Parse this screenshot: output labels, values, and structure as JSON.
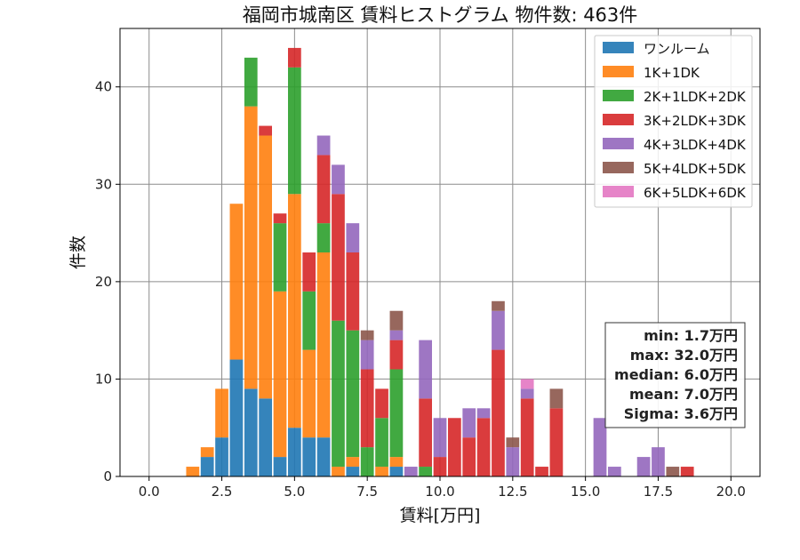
{
  "chart_data": {
    "type": "bar",
    "stacked": true,
    "title": "福岡市城南区 賃料ヒストグラム  物件数: 463件",
    "xlabel": "賃料[万円]",
    "ylabel": "件数",
    "xlim": [
      -1.0,
      21.0
    ],
    "ylim": [
      0,
      46
    ],
    "xticks": [
      0.0,
      2.5,
      5.0,
      7.5,
      10.0,
      12.5,
      15.0,
      17.5,
      20.0
    ],
    "xtick_labels": [
      "0.0",
      "2.5",
      "5.0",
      "7.5",
      "10.0",
      "12.5",
      "15.0",
      "17.5",
      "20.0"
    ],
    "yticks": [
      0,
      10,
      20,
      30,
      40
    ],
    "ytick_labels": [
      "0",
      "10",
      "20",
      "30",
      "40"
    ],
    "grid": true,
    "legend_position": "top-right",
    "bin_width": 0.5,
    "series": [
      {
        "name": "ワンルーム",
        "color": "#1f77b4",
        "x": [
          2.0,
          2.5,
          3.0,
          3.5,
          4.0,
          4.5,
          5.0,
          5.5,
          6.0,
          7.0,
          8.5
        ],
        "values": [
          2,
          4,
          12,
          9,
          8,
          2,
          5,
          4,
          4,
          1,
          1
        ]
      },
      {
        "name": "1K+1DK",
        "color": "#ff7f0e",
        "x": [
          1.5,
          2.0,
          2.5,
          3.0,
          3.5,
          4.0,
          4.5,
          5.0,
          5.5,
          6.0,
          6.5,
          7.0,
          8.0,
          8.5
        ],
        "values": [
          1,
          1,
          5,
          16,
          29,
          27,
          17,
          24,
          9,
          19,
          1,
          1,
          1,
          1
        ]
      },
      {
        "name": "2K+1LDK+2DK",
        "color": "#2ca02c",
        "x": [
          3.5,
          4.5,
          5.0,
          5.5,
          6.0,
          6.5,
          7.0,
          7.5,
          8.0,
          8.5,
          9.5
        ],
        "values": [
          5,
          7,
          13,
          6,
          3,
          15,
          13,
          3,
          5,
          9,
          1
        ]
      },
      {
        "name": "3K+2LDK+3DK",
        "color": "#d62728",
        "x": [
          4.0,
          4.5,
          5.0,
          5.5,
          6.0,
          6.5,
          7.0,
          7.5,
          8.0,
          8.5,
          9.5,
          10.0,
          10.5,
          11.0,
          11.5,
          12.0,
          13.0,
          13.5,
          14.0,
          18.5
        ],
        "values": [
          1,
          1,
          2,
          4,
          7,
          13,
          8,
          8,
          3,
          3,
          7,
          2,
          6,
          4,
          6,
          13,
          8,
          1,
          7,
          1
        ]
      },
      {
        "name": "4K+3LDK+4DK",
        "color": "#9467bd",
        "x": [
          6.0,
          6.5,
          7.0,
          7.5,
          8.5,
          9.0,
          9.5,
          10.0,
          11.0,
          11.5,
          12.0,
          12.5,
          13.0,
          15.5,
          16.0,
          17.0,
          17.5
        ],
        "values": [
          2,
          3,
          3,
          3,
          1,
          1,
          6,
          4,
          3,
          1,
          4,
          3,
          1,
          6,
          1,
          2,
          3
        ]
      },
      {
        "name": "5K+4LDK+5DK",
        "color": "#8c564b",
        "x": [
          7.5,
          8.5,
          12.0,
          12.5,
          14.0,
          18.0
        ],
        "values": [
          1,
          2,
          1,
          1,
          2,
          1
        ]
      },
      {
        "name": "6K+5LDK+6DK",
        "color": "#e377c2",
        "x": [
          13.0
        ],
        "values": [
          1
        ]
      }
    ],
    "stats": {
      "lines": [
        "min: 1.7万円",
        "max: 32.0万円",
        "median: 6.0万円",
        "mean: 7.0万円",
        "Sigma: 3.6万円"
      ]
    }
  }
}
